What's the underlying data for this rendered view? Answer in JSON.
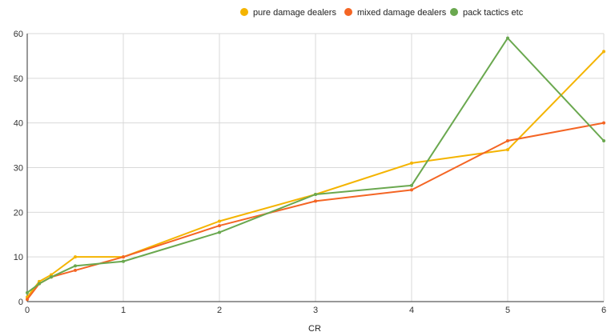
{
  "chart_data": {
    "type": "line",
    "xlabel": "CR",
    "ylabel": "",
    "xlim": [
      0,
      6
    ],
    "ylim": [
      0,
      60
    ],
    "x_ticks": [
      "0",
      "1",
      "2",
      "3",
      "4",
      "5",
      "6"
    ],
    "y_ticks": [
      "0",
      "10",
      "20",
      "30",
      "40",
      "50",
      "60"
    ],
    "grid": true,
    "legend_position": "top-right",
    "series": [
      {
        "name": "pure damage dealers",
        "color": "#f4b400",
        "points": [
          [
            0,
            1
          ],
          [
            0.125,
            4.5
          ],
          [
            0.25,
            6
          ],
          [
            0.5,
            10
          ],
          [
            1,
            10
          ],
          [
            2,
            18
          ],
          [
            3,
            24
          ],
          [
            4,
            31
          ],
          [
            5,
            34
          ],
          [
            6,
            56
          ]
        ]
      },
      {
        "name": "mixed damage dealers",
        "color": "#f46524",
        "points": [
          [
            0,
            0.5
          ],
          [
            0.125,
            4
          ],
          [
            0.25,
            5.5
          ],
          [
            0.5,
            7
          ],
          [
            1,
            10
          ],
          [
            2,
            17
          ],
          [
            3,
            22.5
          ],
          [
            4,
            25
          ],
          [
            5,
            36
          ],
          [
            6,
            40
          ]
        ]
      },
      {
        "name": "pack tactics etc",
        "color": "#6aa84f",
        "points": [
          [
            0,
            2
          ],
          [
            0.125,
            4
          ],
          [
            0.25,
            5.5
          ],
          [
            0.5,
            8
          ],
          [
            1,
            9
          ],
          [
            2,
            15.5
          ],
          [
            3,
            24
          ],
          [
            4,
            26
          ],
          [
            5,
            59
          ],
          [
            6,
            36
          ]
        ]
      }
    ]
  }
}
